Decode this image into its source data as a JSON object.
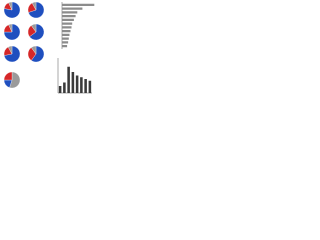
{
  "chart_data": [
    {
      "type": "pie",
      "values": [
        78,
        15,
        7
      ],
      "colors": [
        "#1f4fbf",
        "#d62728",
        "#9a9a9a"
      ]
    },
    {
      "type": "pie",
      "values": [
        70,
        22,
        8
      ],
      "colors": [
        "#1f4fbf",
        "#d62728",
        "#9a9a9a"
      ]
    },
    {
      "type": "pie",
      "values": [
        75,
        18,
        7
      ],
      "colors": [
        "#1f4fbf",
        "#d62728",
        "#9a9a9a"
      ]
    },
    {
      "type": "pie",
      "values": [
        65,
        25,
        10
      ],
      "colors": [
        "#1f4fbf",
        "#d62728",
        "#9a9a9a"
      ]
    },
    {
      "type": "pie",
      "values": [
        72,
        20,
        8
      ],
      "colors": [
        "#1f4fbf",
        "#d62728",
        "#9a9a9a"
      ]
    },
    {
      "type": "pie",
      "values": [
        60,
        30,
        10
      ],
      "colors": [
        "#1f4fbf",
        "#d62728",
        "#9a9a9a"
      ]
    },
    {
      "type": "pie",
      "values": [
        55,
        20,
        25
      ],
      "colors": [
        "#9a9a9a",
        "#1f4fbf",
        "#d62728"
      ]
    },
    {
      "type": "hbar",
      "values": [
        95,
        60,
        45,
        40,
        35,
        30,
        28,
        25,
        22,
        20,
        18,
        15
      ],
      "xlim": [
        0,
        100
      ],
      "color": "#8c8c8c"
    },
    {
      "type": "bar",
      "values": [
        20,
        30,
        75,
        60,
        50,
        45,
        40,
        35
      ],
      "ylim": [
        0,
        100
      ],
      "color": "#3a3a3a"
    }
  ]
}
